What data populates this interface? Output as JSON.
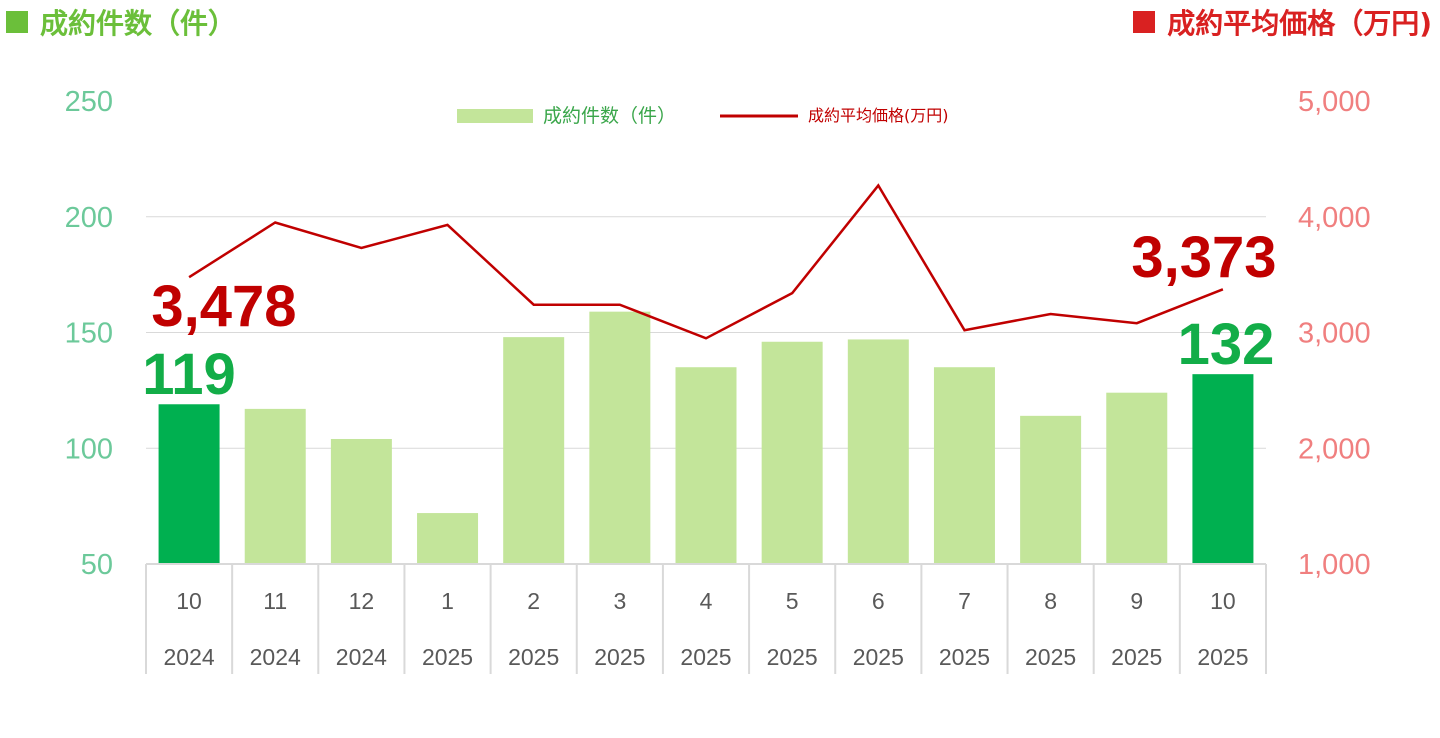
{
  "header": {
    "left_title": "成約件数（件）",
    "right_title": "成約平均価格（万円)"
  },
  "chart_data": {
    "type": "bar",
    "categories": [
      {
        "month": "10",
        "year": "2024"
      },
      {
        "month": "11",
        "year": "2024"
      },
      {
        "month": "12",
        "year": "2024"
      },
      {
        "month": "1",
        "year": "2025"
      },
      {
        "month": "2",
        "year": "2025"
      },
      {
        "month": "3",
        "year": "2025"
      },
      {
        "month": "4",
        "year": "2025"
      },
      {
        "month": "5",
        "year": "2025"
      },
      {
        "month": "6",
        "year": "2025"
      },
      {
        "month": "7",
        "year": "2025"
      },
      {
        "month": "8",
        "year": "2025"
      },
      {
        "month": "9",
        "year": "2025"
      },
      {
        "month": "10",
        "year": "2025"
      }
    ],
    "series": [
      {
        "name": "成約件数（件）",
        "kind": "bar",
        "axis": "left",
        "values": [
          119,
          117,
          104,
          72,
          148,
          159,
          135,
          146,
          147,
          135,
          114,
          124,
          132
        ],
        "highlight_indices": [
          0,
          12
        ]
      },
      {
        "name": "成約平均価格(万円)",
        "kind": "line",
        "axis": "right",
        "values": [
          3478,
          3950,
          3730,
          3930,
          3240,
          3240,
          2950,
          3340,
          4270,
          3020,
          3160,
          3080,
          3373
        ]
      }
    ],
    "left_axis": {
      "min": 50,
      "max": 250,
      "ticks": [
        "250",
        "200",
        "150",
        "100",
        "50"
      ]
    },
    "right_axis": {
      "min": 1000,
      "max": 5000,
      "ticks": [
        "5,000",
        "4,000",
        "3,000",
        "2,000",
        "1,000"
      ]
    },
    "annotations": {
      "first_count": "119",
      "last_count": "132",
      "first_price": "3,478",
      "last_price": "3,373"
    },
    "colors": {
      "bar": "#c3e59a",
      "bar_highlight": "#00b050",
      "line": "#c00000",
      "left_axis": "#6cc99a",
      "right_axis": "#f07f7f",
      "gridline": "#d9d9d9"
    },
    "legend_position": "top-center",
    "grid": true
  }
}
